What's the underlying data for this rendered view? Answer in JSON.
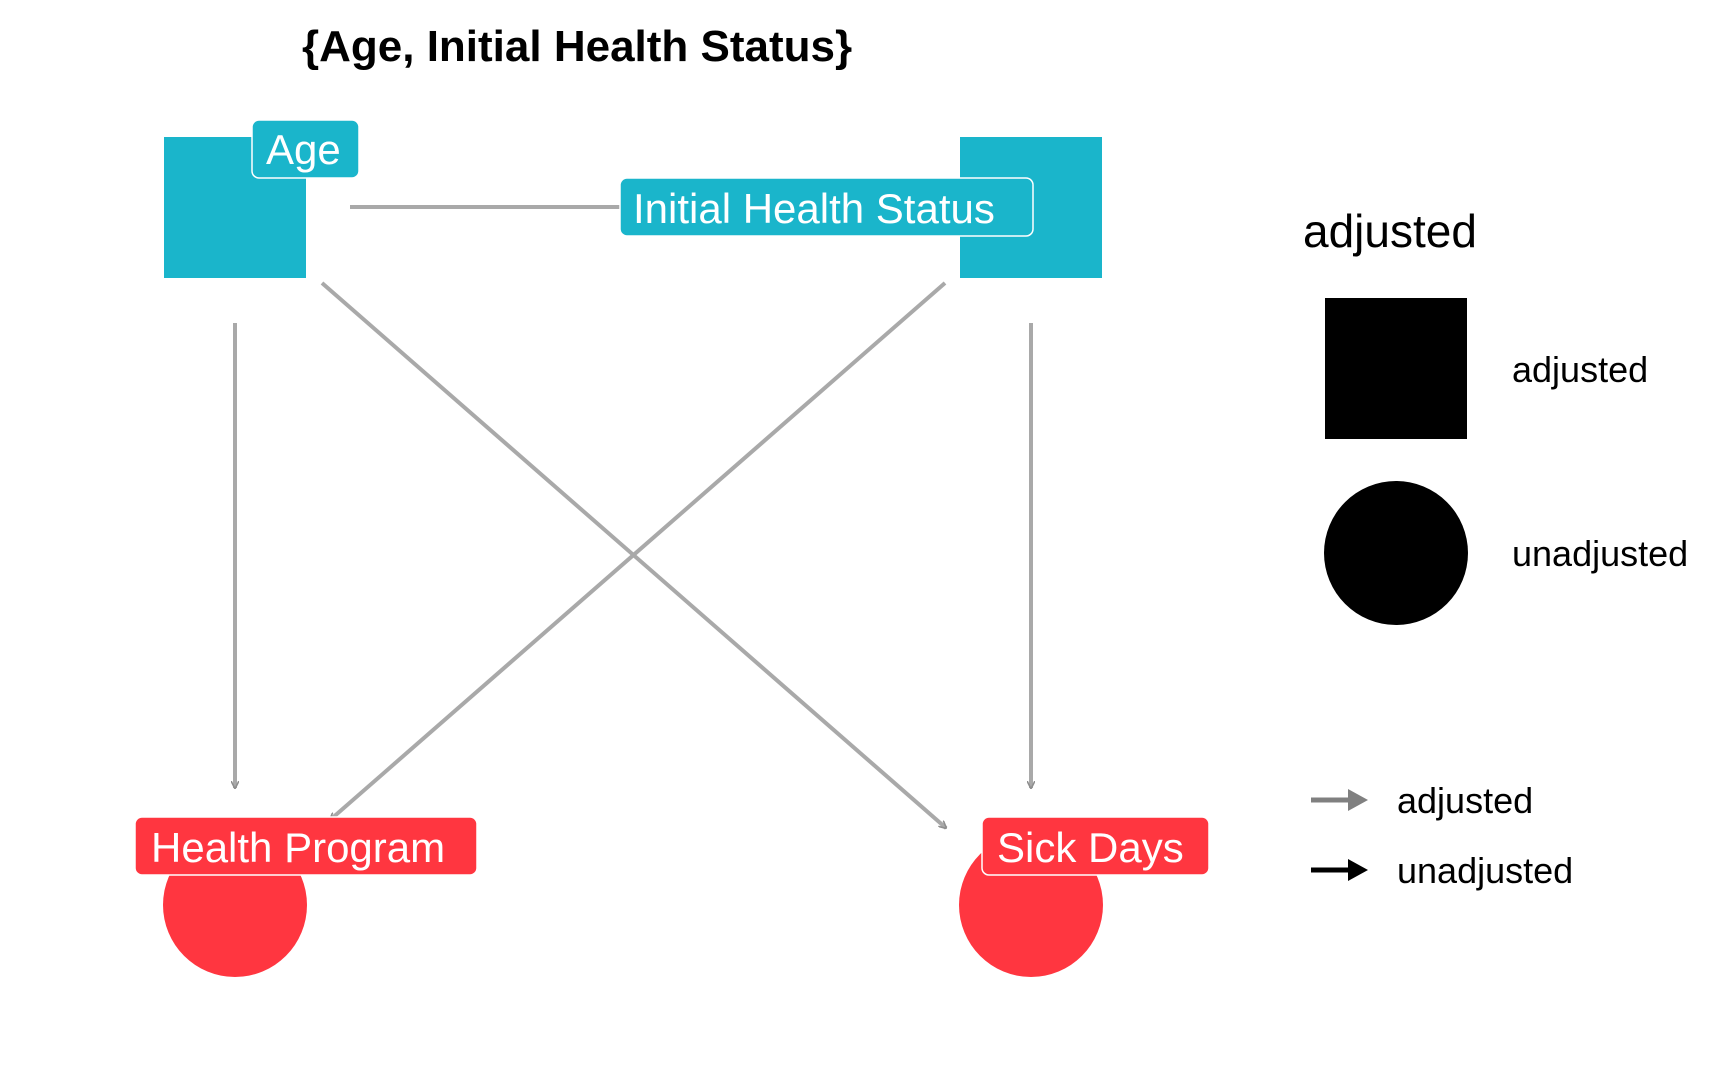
{
  "title": "{Age, Initial Health Status}",
  "colors": {
    "adjusted_node": "#1AB5CB",
    "unadjusted_node": "#FF3640",
    "edge": "#A9A9A9",
    "legend_mark": "#000000"
  },
  "nodes": [
    {
      "id": "age",
      "label": "Age",
      "status": "adjusted",
      "shape": "square"
    },
    {
      "id": "ihs",
      "label": "Initial Health Status",
      "status": "adjusted",
      "shape": "square"
    },
    {
      "id": "hp",
      "label": "Health Program",
      "status": "unadjusted",
      "shape": "circle"
    },
    {
      "id": "sd",
      "label": "Sick Days",
      "status": "unadjusted",
      "shape": "circle"
    }
  ],
  "edges": [
    {
      "from": "age",
      "to": "ihs",
      "status": "adjusted",
      "directed": false
    },
    {
      "from": "age",
      "to": "hp",
      "status": "adjusted",
      "directed": true
    },
    {
      "from": "age",
      "to": "sd",
      "status": "adjusted",
      "directed": true
    },
    {
      "from": "ihs",
      "to": "hp",
      "status": "adjusted",
      "directed": true
    },
    {
      "from": "ihs",
      "to": "sd",
      "status": "adjusted",
      "directed": true
    }
  ],
  "legend_shape": {
    "title": "adjusted",
    "items": [
      {
        "label": "adjusted",
        "shape": "square-icon"
      },
      {
        "label": "unadjusted",
        "shape": "circle-icon"
      }
    ]
  },
  "legend_edge": {
    "items": [
      {
        "label": "adjusted",
        "shape": "gray-arrow-icon"
      },
      {
        "label": "unadjusted",
        "shape": "black-arrow-icon"
      }
    ]
  }
}
